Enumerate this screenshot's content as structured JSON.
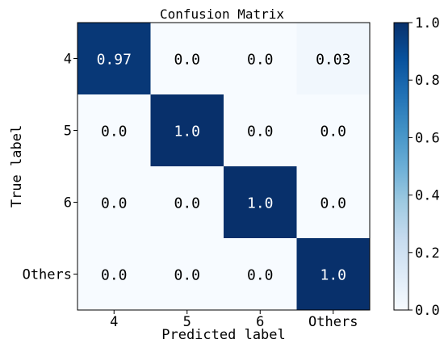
{
  "chart_data": {
    "type": "heatmap",
    "title": "Confusion Matrix",
    "xlabel": "Predicted label",
    "ylabel": "True label",
    "x_categories": [
      "4",
      "5",
      "6",
      "Others"
    ],
    "y_categories": [
      "4",
      "5",
      "6",
      "Others"
    ],
    "values": [
      [
        0.97,
        0.0,
        0.0,
        0.03
      ],
      [
        0.0,
        1.0,
        0.0,
        0.0
      ],
      [
        0.0,
        0.0,
        1.0,
        0.0
      ],
      [
        0.0,
        0.0,
        0.0,
        1.0
      ]
    ],
    "cell_labels": [
      [
        "0.97",
        "0.0",
        "0.0",
        "0.03"
      ],
      [
        "0.0",
        "1.0",
        "0.0",
        "0.0"
      ],
      [
        "0.0",
        "0.0",
        "1.0",
        "0.0"
      ],
      [
        "0.0",
        "0.0",
        "0.0",
        "1.0"
      ]
    ],
    "colorbar": {
      "range": [
        0.0,
        1.0
      ],
      "ticks": [
        "0.0",
        "0.2",
        "0.4",
        "0.6",
        "0.8",
        "1.0"
      ]
    },
    "colormap": "Blues",
    "colors": {
      "low": "#f7fbff",
      "high": "#08306b",
      "label_on_dark": "#ffffff",
      "label_on_light": "#000000"
    }
  }
}
